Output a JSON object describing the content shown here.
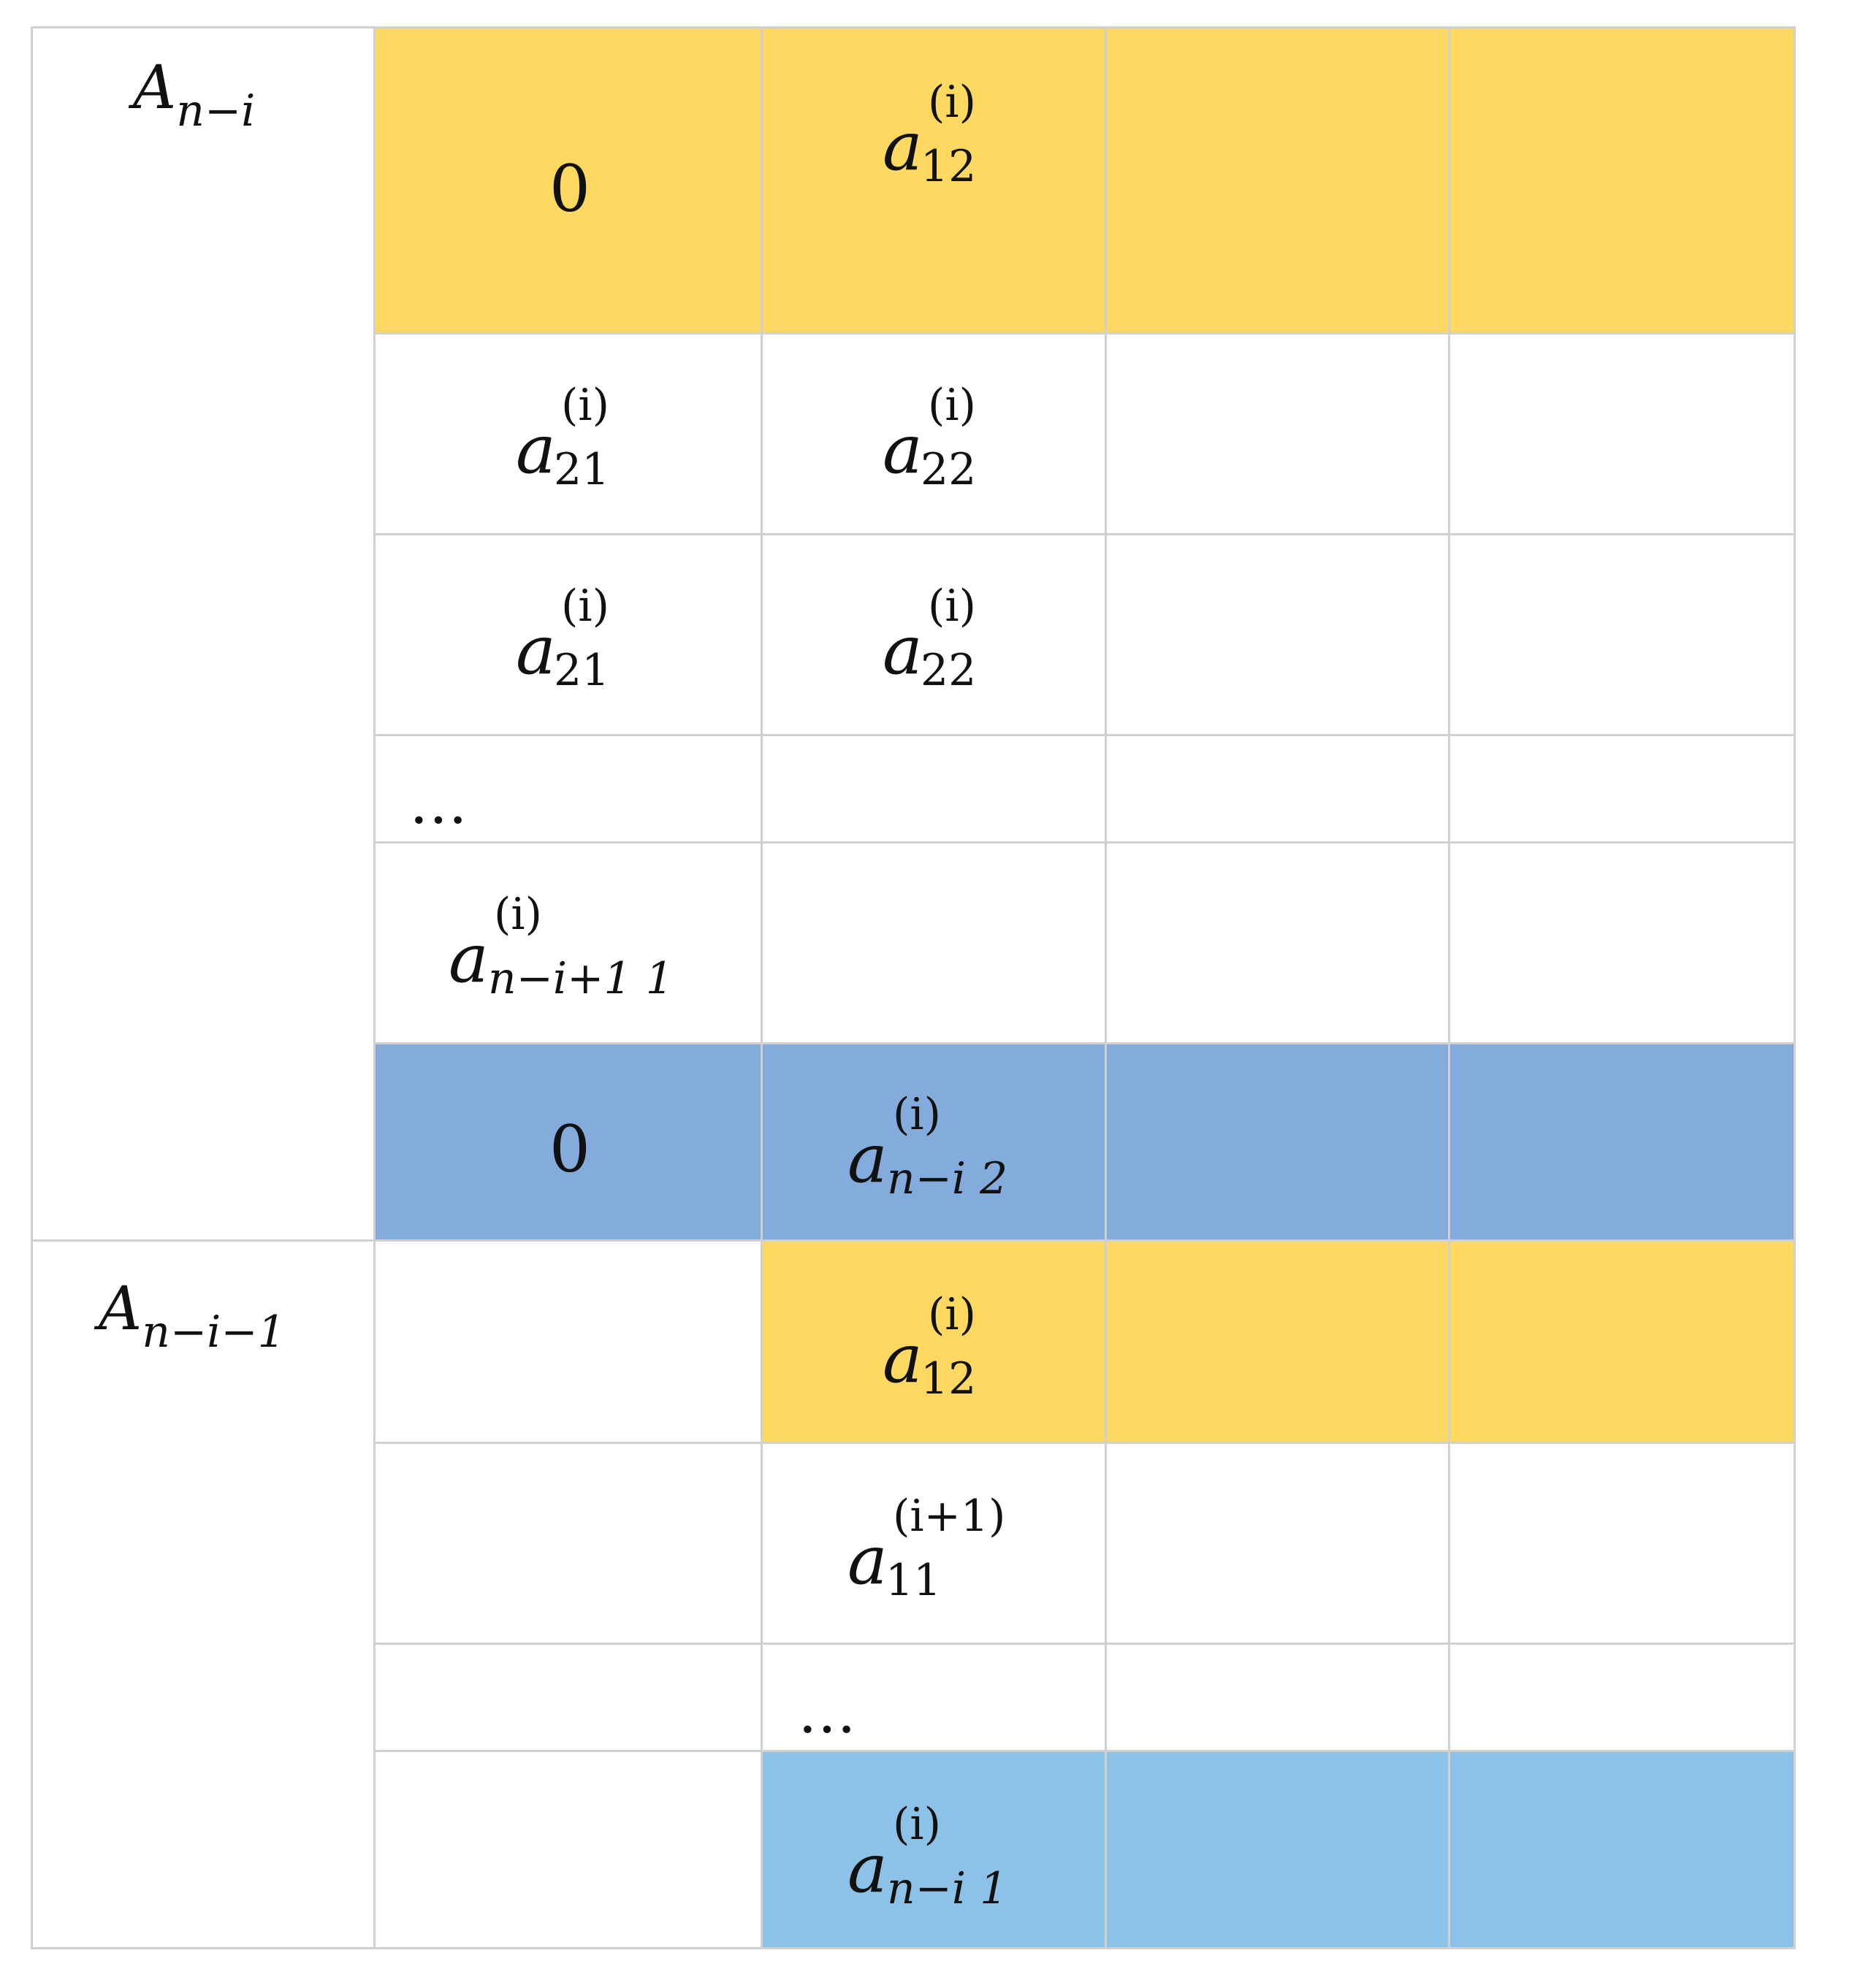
{
  "rows": {
    "group_top_label": "A",
    "group_top_label_sub": "n−i",
    "group_bottom_label": "A",
    "group_bottom_label_sub": "n−i−1"
  },
  "entries": {
    "r1c1": "0",
    "r1c2": {
      "base": "a",
      "sup": "(i)",
      "sub": "12"
    },
    "r2c1": {
      "base": "a",
      "sup": "(i)",
      "sub": "21"
    },
    "r2c2": {
      "base": "a",
      "sup": "(i)",
      "sub": "22"
    },
    "r3c1": {
      "base": "a",
      "sup": "(i)",
      "sub": "21"
    },
    "r3c2": {
      "base": "a",
      "sup": "(i)",
      "sub": "22"
    },
    "r4c1": "…",
    "r5c1": {
      "base": "a",
      "sup": "(i)",
      "sub": "n−i+1 1"
    },
    "r6c1": "0",
    "r6c2": {
      "base": "a",
      "sup": "(i)",
      "sub": "n−i 2"
    },
    "r7c2": {
      "base": "a",
      "sup": "(i)",
      "sub": "12"
    },
    "r8c2": {
      "base": "a",
      "sup": "(i+1)",
      "sub": "11"
    },
    "r9c2": "…",
    "r10c2": {
      "base": "a",
      "sup": "(i)",
      "sub": "n−i 1"
    }
  },
  "colors": {
    "yellow": "#fdd961",
    "blue": "#83acdd",
    "light_blue": "#8cc2e7",
    "grid": "#d0d0d0"
  }
}
